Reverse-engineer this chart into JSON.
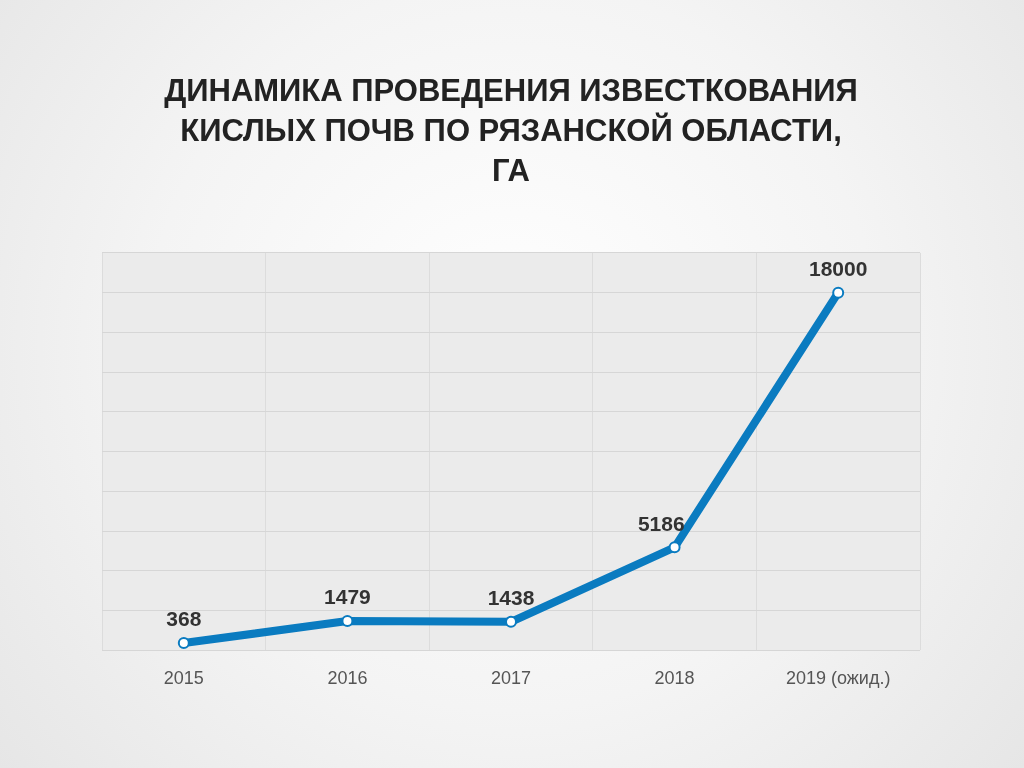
{
  "chart_data": {
    "type": "line",
    "title": "ДИНАМИКА ПРОВЕДЕНИЯ ИЗВЕСТКОВАНИЯ КИСЛЫХ ПОЧВ ПО РЯЗАНСКОЙ ОБЛАСТИ, ГА",
    "categories": [
      "2015",
      "2016",
      "2017",
      "2018",
      "2019 (ожид.)"
    ],
    "values": [
      368,
      1479,
      1438,
      5186,
      18000
    ],
    "color": "#0a7bc0",
    "ylim": [
      0,
      20000
    ],
    "yticks": [
      {
        "value": 0,
        "label": null
      },
      {
        "value": 2000,
        "label": null
      },
      {
        "value": 4000,
        "label": null
      },
      {
        "value": 6000,
        "label": null
      },
      {
        "value": 8000,
        "label": null
      },
      {
        "value": 10000,
        "label": null
      },
      {
        "value": 12000,
        "label": null
      },
      {
        "value": 14000,
        "label": null
      },
      {
        "value": 16000,
        "label": null
      },
      {
        "value": 18000,
        "label": null
      },
      {
        "value": 20000,
        "label": null
      }
    ],
    "tick_labels": "x",
    "grid": true,
    "legend": false,
    "marker": "circle",
    "line_style": "solid",
    "data_labels": true
  }
}
